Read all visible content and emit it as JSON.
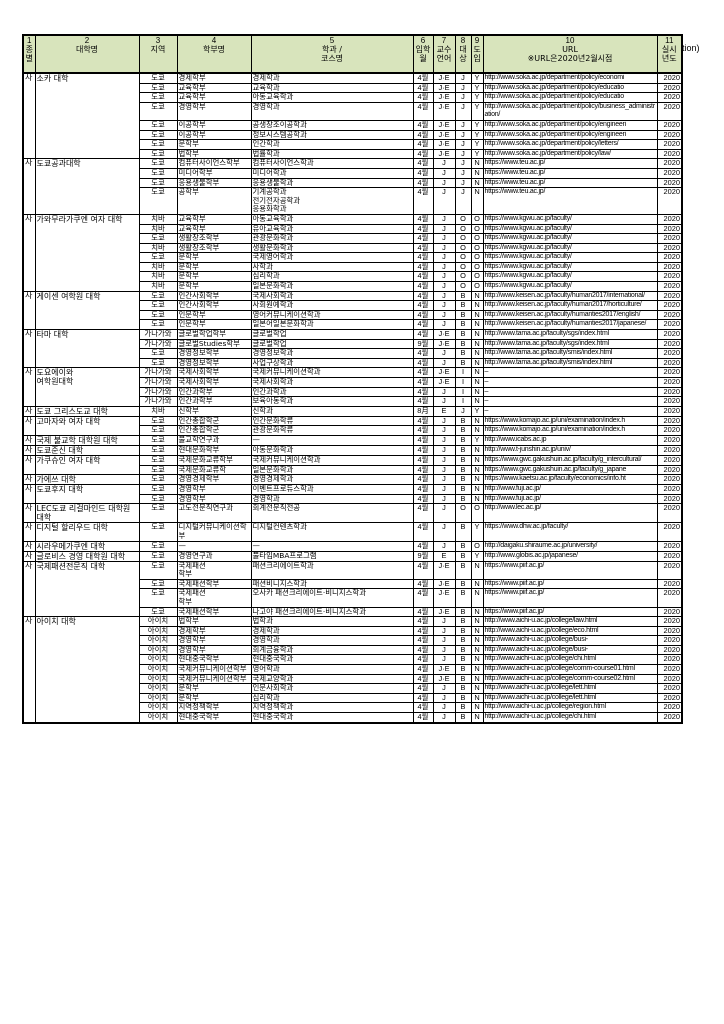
{
  "stray_text": "tion)",
  "header": [
    {
      "num": "1",
      "label": "종별"
    },
    {
      "num": "2",
      "label": "대학명"
    },
    {
      "num": "3",
      "label": "지역"
    },
    {
      "num": "4",
      "label": "학부명"
    },
    {
      "num": "5",
      "label": "학과 /\n코스명"
    },
    {
      "num": "6",
      "label": "입학월"
    },
    {
      "num": "7",
      "label": "교수언어"
    },
    {
      "num": "8",
      "label": "대상"
    },
    {
      "num": "9",
      "label": "도입"
    },
    {
      "num": "10",
      "label": "URL\n※URL은2020년2월시점"
    },
    {
      "num": "11",
      "label": "실시년도"
    }
  ],
  "groups": [
    {
      "type": "사",
      "university": "소카 대학",
      "rows": [
        [
          "도쿄",
          "경제학부",
          "경제학과",
          "4월",
          "J·E",
          "J",
          "Y",
          "http://www.soka.ac.jp/department/policy/economi",
          "2020"
        ],
        [
          "도쿄",
          "교육학부",
          "교육학과",
          "4월",
          "J·E",
          "J",
          "Y",
          "http://www.soka.ac.jp/department/policy/educatio",
          "2020"
        ],
        [
          "도쿄",
          "교육학부",
          "아동교육학과",
          "4월",
          "J·E",
          "J",
          "Y",
          "http://www.soka.ac.jp/department/policy/educatio",
          "2020"
        ],
        [
          "도쿄",
          "경영학부",
          "경영학과",
          "4월",
          "J·E",
          "J",
          "Y",
          "http://www.soka.ac.jp/department/policy/business_administration/",
          "2020"
        ],
        [
          "도쿄",
          "이공학부",
          "공생창조이공학과",
          "4월",
          "J·E",
          "J",
          "Y",
          "http://www.soka.ac.jp/department/policy/engineeri",
          "2020"
        ],
        [
          "도쿄",
          "이공학부",
          "정보시스템공학과",
          "4월",
          "J·E",
          "J",
          "Y",
          "http://www.soka.ac.jp/department/policy/engineeri",
          "2020"
        ],
        [
          "도쿄",
          "문학부",
          "인간학과",
          "4월",
          "J·E",
          "J",
          "Y",
          "http://www.soka.ac.jp/department/policy/letters/",
          "2020"
        ],
        [
          "도쿄",
          "법학부",
          "법률학과",
          "4월",
          "J·E",
          "J",
          "Y",
          "http://www.soka.ac.jp/department/policy/law/",
          "2020"
        ]
      ]
    },
    {
      "type": "사",
      "university": "도쿄공과대학",
      "rows": [
        [
          "도쿄",
          "컴퓨터사이언스학부",
          "컴퓨터사이언스학과",
          "4월",
          "J",
          "J",
          "N",
          "https://www.teu.ac.jp/",
          "2020"
        ],
        [
          "도쿄",
          "미디어학부",
          "미디어학과",
          "4월",
          "J",
          "J",
          "N",
          "https://www.teu.ac.jp/",
          "2020"
        ],
        [
          "도쿄",
          "응용생물학부",
          "응용생물학과",
          "4월",
          "J",
          "J",
          "N",
          "https://www.teu.ac.jp/",
          "2020"
        ],
        [
          "도쿄",
          "공학부",
          "기계공학과\n전기전자공학과\n응용화학과",
          "4월",
          "J",
          "J",
          "N",
          "https://www.teu.ac.jp/",
          "2020"
        ]
      ]
    },
    {
      "type": "사",
      "university": "가와무라가쿠엔 여자 대학",
      "rows": [
        [
          "치바",
          "교육학부",
          "아동교육학과",
          "4월",
          "J",
          "O",
          "O",
          "https://www.kgwu.ac.jp/faculty/",
          "2020"
        ],
        [
          "치바",
          "교육학부",
          "유아교육학과",
          "4월",
          "J",
          "O",
          "O",
          "https://www.kgwu.ac.jp/faculty/",
          "2020"
        ],
        [
          "도쿄",
          "생활창조학부",
          "관광문화학과",
          "4월",
          "J",
          "O",
          "O",
          "https://www.kgwu.ac.jp/faculty/",
          "2020"
        ],
        [
          "치바",
          "생활창조학부",
          "생활문화학과",
          "4월",
          "J",
          "O",
          "O",
          "https://www.kgwu.ac.jp/faculty/",
          "2020"
        ],
        [
          "도쿄",
          "문학부",
          "국제영어학과",
          "4월",
          "J",
          "O",
          "O",
          "https://www.kgwu.ac.jp/faculty/",
          "2020"
        ],
        [
          "치바",
          "문학부",
          "사학과",
          "4월",
          "J",
          "O",
          "O",
          "https://www.kgwu.ac.jp/faculty/",
          "2020"
        ],
        [
          "치바",
          "문학부",
          "심리학과",
          "4월",
          "J",
          "O",
          "O",
          "https://www.kgwu.ac.jp/faculty/",
          "2020"
        ],
        [
          "치바",
          "문학부",
          "일본문화학과",
          "4월",
          "J",
          "O",
          "O",
          "https://www.kgwu.ac.jp/faculty/",
          "2020"
        ]
      ]
    },
    {
      "type": "사",
      "university": "게이센 여학원 대학",
      "rows": [
        [
          "도쿄",
          "인간사회학부",
          "국제사회학과",
          "4월",
          "J",
          "B",
          "N",
          "http://www.keisen.ac.jp/faculty/human2017/international/",
          "2020"
        ],
        [
          "도쿄",
          "인간사회학부",
          "사회원예학과",
          "4월",
          "J",
          "B",
          "N",
          "http://www.keisen.ac.jp/faculty/human2017/horticulture/",
          "2020"
        ],
        [
          "도쿄",
          "인문학부",
          "영어커뮤니케이션학과",
          "4월",
          "J",
          "B",
          "N",
          "http://www.keisen.ac.jp/faculty/humanties2017/english/",
          "2020"
        ],
        [
          "도쿄",
          "인문학부",
          "일본어일본문화학과",
          "4월",
          "J",
          "B",
          "N",
          "http://www.keisen.ac.jp/faculty/humanties2017/japanese/",
          "2020"
        ]
      ]
    },
    {
      "type": "사",
      "university": "타마 대학",
      "rows": [
        [
          "가나가와",
          "글로벌학업학부",
          "글로벌학업",
          "4월",
          "J·E",
          "B",
          "N",
          "http://www.tama.ac.jp/faculty/sgs/index.html",
          "2020"
        ],
        [
          "가나가와",
          "글로벌Studies학부",
          "글로벌학업",
          "9월",
          "J·E",
          "B",
          "N",
          "http://www.tama.ac.jp/faculty/sgs/index.html",
          "2020"
        ],
        [
          "도쿄",
          "경영정보학부",
          "경영정보학과",
          "4월",
          "J",
          "B",
          "N",
          "http://www.tama.ac.jp/faculty/smis/index.html",
          "2020"
        ],
        [
          "도쿄",
          "경영정보학부",
          "사업구상학과",
          "4월",
          "J",
          "B",
          "N",
          "http://www.tama.ac.jp/faculty/smis/index.html",
          "2020"
        ]
      ]
    },
    {
      "type": "사",
      "university": "도요에이와\n여학원대학",
      "rows": [
        [
          "가나가와",
          "국제사회학부",
          "국제커뮤니케이션학과",
          "4월",
          "J·E",
          "I",
          "N",
          "–",
          "2020"
        ],
        [
          "가나가와",
          "국제사회학부",
          "국제사회학과",
          "4월",
          "J·E",
          "I",
          "N",
          "–",
          "2020"
        ],
        [
          "가나가와",
          "인간과학부",
          "인간과학과",
          "4월",
          "J",
          "I",
          "N",
          "–",
          "2020"
        ],
        [
          "가나가와",
          "인간과학부",
          "보육아동학과",
          "4월",
          "J",
          "I",
          "N",
          "–",
          "2020"
        ]
      ]
    },
    {
      "type": "사",
      "university": "도쿄 그리스도교 대학",
      "rows": [
        [
          "치바",
          "신학부",
          "신학과",
          "8月",
          "E",
          "J",
          "Y",
          "–",
          "2020"
        ]
      ]
    },
    {
      "type": "사",
      "university": "고마자와 여자 대학",
      "rows": [
        [
          "도쿄",
          "인간총합학군",
          "인간문화학류",
          "4월",
          "J",
          "B",
          "N",
          "https://www.komajo.ac.jp/uni/examination/index.h",
          "2020"
        ],
        [
          "도쿄",
          "인간총합학군",
          "관광문화학류",
          "4월",
          "J",
          "B",
          "N",
          "https://www.komajo.ac.jp/uni/examination/index.h",
          "2020"
        ]
      ]
    },
    {
      "type": "사",
      "university": "국제 불교학 대학원 대학",
      "rows": [
        [
          "도쿄",
          "불교학연구과",
          "—",
          "4월",
          "J",
          "B",
          "Y",
          "http://www.icabs.ac.jp",
          "2020"
        ]
      ]
    },
    {
      "type": "사",
      "university": "도쿄준신 대학",
      "rows": [
        [
          "도쿄",
          "현대문화학부",
          "아동문화학과",
          "4월",
          "J",
          "B",
          "N",
          "http://www.t-junshin.ac.jp/univ/",
          "2020"
        ]
      ]
    },
    {
      "type": "사",
      "university": "가쿠슈인 여자 대학",
      "rows": [
        [
          "도쿄",
          "국제문화교류학부",
          "국제커뮤니케이션학과",
          "4월",
          "J",
          "B",
          "N",
          "https://www.gwc.gakushuin.ac.jp/faculty/g_intercultural/",
          "2020"
        ],
        [
          "도쿄",
          "국제문화교류학",
          "일본문화학과",
          "4월",
          "J",
          "B",
          "N",
          "https://www.gwc.gakushuin.ac.jp/faculty/g_japane",
          "2020"
        ]
      ]
    },
    {
      "type": "사",
      "university": "가에쓰 대학",
      "rows": [
        [
          "도쿄",
          "경영경제학부",
          "경영경제학과",
          "4월",
          "J",
          "B",
          "N",
          "https://www.kaetsu.ac.jp/faculty/economics/info.ht",
          "2020"
        ]
      ]
    },
    {
      "type": "사",
      "university": "도쿄후지 대학",
      "rows": [
        [
          "도쿄",
          "경영학부",
          "이벤트프로듀스학과",
          "4월",
          "J",
          "B",
          "N",
          "http://www.fuji.ac.jp/",
          "2020"
        ],
        [
          "도쿄",
          "경영학부",
          "경영학과",
          "4월",
          "J",
          "B",
          "N",
          "http://www.fuji.ac.jp/",
          "2020"
        ]
      ]
    },
    {
      "type": "사",
      "university": "LEC도쿄 리걸마인드 대학원대학",
      "rows": [
        [
          "도쿄",
          "고도전문직연구과",
          "회계전문직전공",
          "4월",
          "J",
          "O",
          "O",
          "http://www.lec.ac.jp/",
          "2020"
        ]
      ]
    },
    {
      "type": "사",
      "university": "디지털 할리우드 대학",
      "rows": [
        [
          "도쿄",
          "디지털커뮤니케이션학부",
          "디지털컨텐츠학과",
          "4월",
          "J",
          "B",
          "Y",
          "https://www.dhw.ac.jp/faculty/",
          "2020"
        ]
      ]
    },
    {
      "type": "사",
      "university": "시라우메가쿠엔 대학",
      "rows": [
        [
          "도쿄",
          "—",
          "—",
          "4월",
          "J",
          "B",
          "O",
          "http://daigaku.shiraume.ac.jp/university/",
          "2020"
        ]
      ]
    },
    {
      "type": "사",
      "university": "글로비스 경영 대학원 대학",
      "rows": [
        [
          "도쿄",
          "경영연구과",
          "풀타임MBA프로그램",
          "9월",
          "E",
          "B",
          "Y",
          "http://www.globis.ac.jp/japanese/",
          "2020"
        ]
      ]
    },
    {
      "type": "사",
      "university": "국제패션전문직 대학",
      "rows": [
        [
          "도쿄",
          "국제패션\n학부",
          "패션크리에이트학과",
          "4월",
          "J·E",
          "B",
          "N",
          "https://www.piif.ac.jp/",
          "2020"
        ],
        [
          "도쿄",
          "국제패션학부",
          "패션비니지스학과",
          "4월",
          "J·E",
          "B",
          "N",
          "https://www.piif.ac.jp/",
          "2020"
        ],
        [
          "도쿄",
          "국제패션\n학부",
          "오사카 패션크리에이트·비니지스학과",
          "4월",
          "J·E",
          "B",
          "N",
          "https://www.piif.ac.jp/",
          "2020"
        ],
        [
          "도쿄",
          "국제패션학부",
          "나고야 패션크리에이트·비니지스학과",
          "4월",
          "J·E",
          "B",
          "N",
          "https://www.piif.ac.jp/",
          "2020"
        ]
      ]
    },
    {
      "type": "사",
      "university": "아이치 대학",
      "rows": [
        [
          "아이치",
          "법학부",
          "법학과",
          "4월",
          "J",
          "B",
          "N",
          "http://www.aichi-u.ac.jp/college/law.html",
          "2020"
        ],
        [
          "아이치",
          "경제학부",
          "경제학과",
          "4월",
          "J",
          "B",
          "N",
          "http://www.aichi-u.ac.jp/college/eco.html",
          "2020"
        ],
        [
          "아이치",
          "경영학부",
          "경영학과",
          "4월",
          "J",
          "B",
          "N",
          "http://www.aichi-u.ac.jp/college/busi-",
          "2020"
        ],
        [
          "아이치",
          "경영학부",
          "회계금융학과",
          "4월",
          "J",
          "B",
          "N",
          "http://www.aichi-u.ac.jp/college/busi-",
          "2020"
        ],
        [
          "아이치",
          "현대중국학부",
          "현대중국학과",
          "4월",
          "J",
          "B",
          "N",
          "http://www.aichi-u.ac.jp/college/chi.html",
          "2020"
        ],
        [
          "아이치",
          "국제커뮤니케이션학부",
          "영어학과",
          "4월",
          "J·E",
          "B",
          "N",
          "http://www.aichi-u.ac.jp/college/comm-course01.html",
          "2020"
        ],
        [
          "아이치",
          "국제커뮤니케이션학부",
          "국제교양학과",
          "4월",
          "J·E",
          "B",
          "N",
          "http://www.aichi-u.ac.jp/college/comm-course02.html",
          "2020"
        ],
        [
          "아이치",
          "문학부",
          "인문사회학과",
          "4월",
          "J",
          "B",
          "N",
          "http://www.aichi-u.ac.jp/college/lett.html",
          "2020"
        ],
        [
          "아이치",
          "문학부",
          "심리학과",
          "4월",
          "J",
          "B",
          "N",
          "http://www.aichi-u.ac.jp/college/lett.html",
          "2020"
        ],
        [
          "아이치",
          "지역정책학부",
          "지역정책학과",
          "4월",
          "J",
          "B",
          "N",
          "http://www.aichi-u.ac.jp/college/region.html",
          "2020"
        ],
        [
          "아이치",
          "현대중국학부",
          "현대중국학과",
          "4월",
          "J",
          "B",
          "N",
          "http://www.aichi-u.ac.jp/college/chi.html",
          "2020"
        ]
      ]
    }
  ]
}
